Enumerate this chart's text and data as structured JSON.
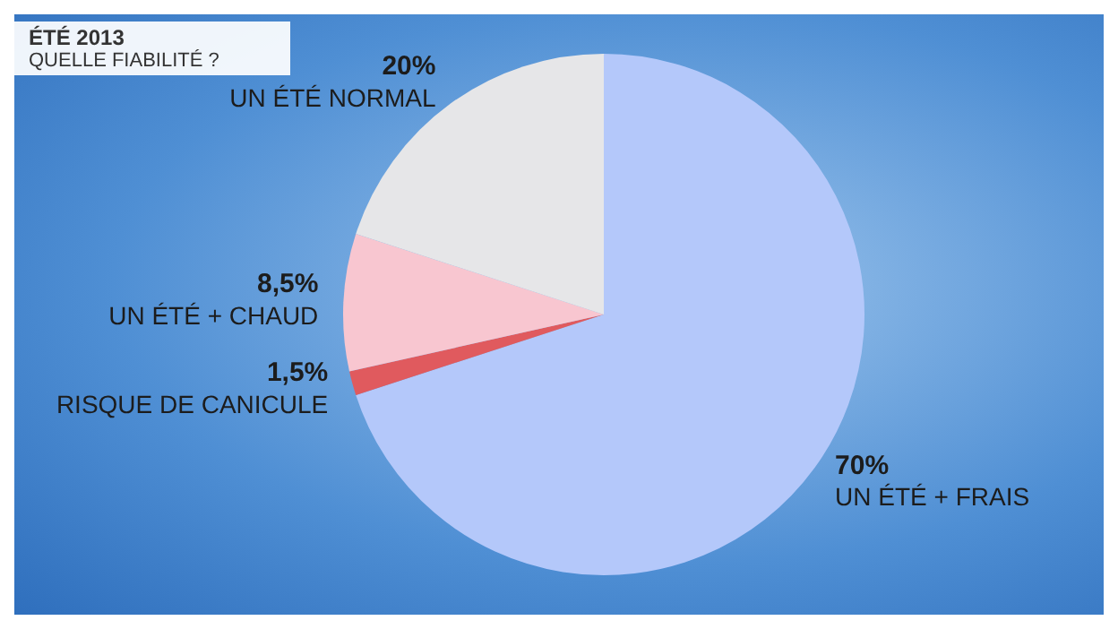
{
  "chart_data": {
    "type": "pie",
    "title": "ÉTÉ 2013",
    "subtitle": "QUELLE FIABILITÉ ?",
    "categories": [
      "UN ÉTÉ + FRAIS",
      "RISQUE DE CANICULE",
      "UN ÉTÉ + CHAUD",
      "UN ÉTÉ NORMAL"
    ],
    "values": [
      70,
      1.5,
      8.5,
      20
    ],
    "value_labels": [
      "70%",
      "1,5%",
      "8,5%",
      "20%"
    ],
    "colors": [
      "#b4c8fa",
      "#e05a5e",
      "#f8c6d0",
      "#e6e6e8"
    ],
    "legend": false
  }
}
